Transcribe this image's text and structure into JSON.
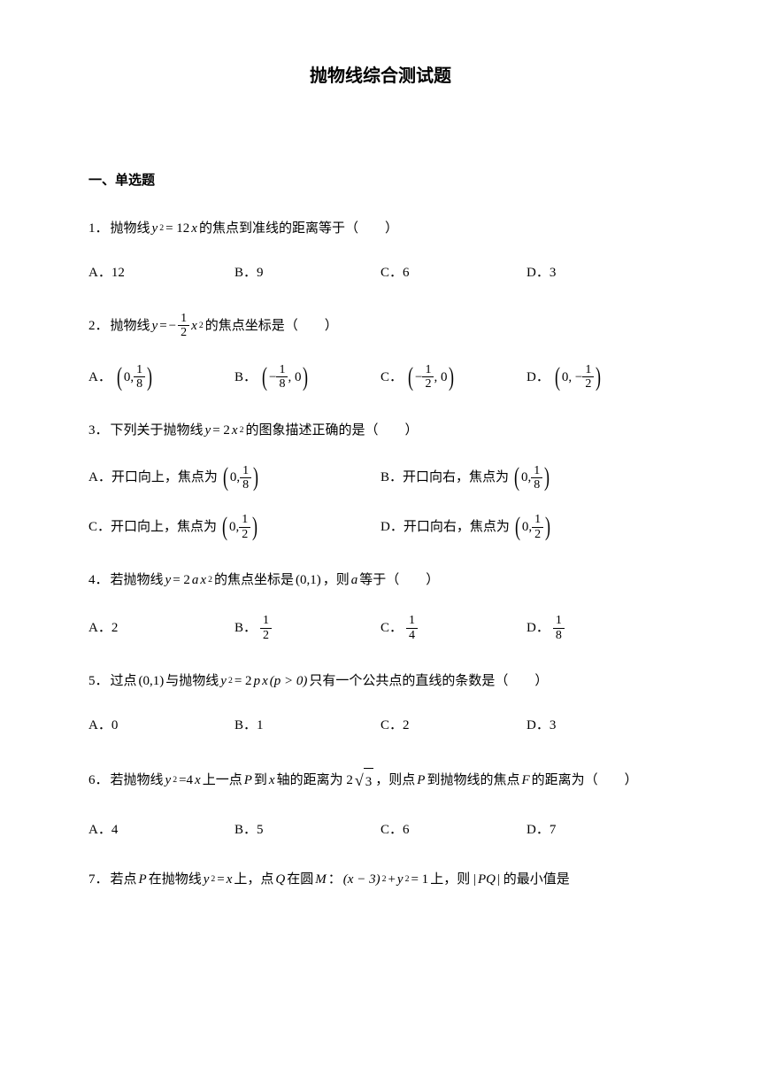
{
  "title": "抛物线综合测试题",
  "section_header": "一、单选题",
  "questions": [
    {
      "num": "1．",
      "stem_prefix": "抛物线 ",
      "eq_lhs": "y",
      "eq_sup": "2",
      "eq_eq": " = 12",
      "eq_var": "x",
      "stem_suffix": " 的焦点到准线的距离等于（　　）",
      "opts": [
        "A．12",
        "B．9",
        "C．6",
        "D．3"
      ],
      "layout": "opt-4"
    },
    {
      "num": "2．",
      "stem_prefix": "抛物线 ",
      "eq_y": "y",
      "eq_eq": " = ",
      "eq_neg": "−",
      "frac_num": "1",
      "frac_den": "2",
      "eq_x": "x",
      "eq_sup": "2",
      "stem_suffix": " 的焦点坐标是（　　）",
      "opts": {
        "A": {
          "label": "A．",
          "a": "0,",
          "n": "1",
          "d": "8"
        },
        "B": {
          "label": "B．",
          "neg": "−",
          "n": "1",
          "d": "8",
          "b": ", 0"
        },
        "C": {
          "label": "C．",
          "neg": "−",
          "n": "1",
          "d": "2",
          "b": ", 0"
        },
        "D": {
          "label": "D．",
          "a": "0, −",
          "n": "1",
          "d": "2"
        }
      },
      "layout": "opt-4"
    },
    {
      "num": "3．",
      "stem_prefix": "下列关于抛物线 ",
      "eq_y": "y",
      "eq_eq": " = 2",
      "eq_x": "x",
      "eq_sup": "2",
      "stem_suffix": " 的图象描述正确的是（　　）",
      "opts": {
        "A": {
          "label": "A．开口向上，焦点为",
          "a": "0,",
          "n": "1",
          "d": "8"
        },
        "B": {
          "label": "B．开口向右，焦点为",
          "a": "0,",
          "n": "1",
          "d": "8"
        },
        "C": {
          "label": "C．开口向上，焦点为",
          "a": "0,",
          "n": "1",
          "d": "2"
        },
        "D": {
          "label": "D．开口向右，焦点为",
          "a": "0,",
          "n": "1",
          "d": "2"
        }
      },
      "layout": "opt-2"
    },
    {
      "num": "4．",
      "stem_prefix": "若抛物线 ",
      "eq_y": "y",
      "eq_eq": " = 2",
      "eq_a": "a",
      "eq_x": "x",
      "eq_sup": "2",
      "stem_mid": " 的焦点坐标是 ",
      "coord": "(0,1)",
      "stem_mid2": "，则 ",
      "eq_a2": "a",
      "stem_suffix": " 等于（　　）",
      "opts": {
        "A": {
          "label": "A．2"
        },
        "B": {
          "label": "B．",
          "n": "1",
          "d": "2"
        },
        "C": {
          "label": "C．",
          "n": "1",
          "d": "4"
        },
        "D": {
          "label": "D．",
          "n": "1",
          "d": "8"
        }
      },
      "layout": "opt-4"
    },
    {
      "num": "5．",
      "stem_prefix": "过点 ",
      "coord": "(0,1)",
      "stem_mid": " 与抛物线 ",
      "eq_y": "y",
      "eq_sup": "2",
      "eq_eq": " = 2",
      "eq_p": "p",
      "eq_x": "x",
      "eq_cond": "(p > 0)",
      "stem_suffix": " 只有一个公共点的直线的条数是（　　）",
      "opts": [
        "A．0",
        "B．1",
        "C．2",
        "D．3"
      ],
      "layout": "opt-4"
    },
    {
      "num": "6．",
      "stem_prefix": "若抛物线 ",
      "eq_y": "y",
      "eq_sup": "2",
      "eq_eq": "=4",
      "eq_x": "x",
      "stem_mid": " 上一点 ",
      "eq_P": "P",
      "stem_mid2": " 到 ",
      "eq_x2": "x",
      "stem_mid3": " 轴的距离为 2",
      "sqrt_arg": "3",
      "stem_mid4": "，则点 ",
      "eq_P2": "P",
      "stem_mid5": " 到抛物线的焦点 ",
      "eq_F": "F",
      "stem_suffix": " 的距离为（　　）",
      "opts": [
        "A．4",
        "B．5",
        "C．6",
        "D．7"
      ],
      "layout": "opt-4"
    },
    {
      "num": "7．",
      "stem_prefix": "若点 ",
      "eq_P": "P",
      "stem_mid": " 在抛物线 ",
      "eq_y": "y",
      "eq_sup": "2",
      "eq_eq": " = ",
      "eq_x": "x",
      "stem_mid2": " 上，点 ",
      "eq_Q": "Q",
      "stem_mid3": " 在圆 ",
      "eq_M": "M",
      "stem_mid4": "：",
      "circ_lhs": "(x − 3)",
      "circ_sup": "2",
      "circ_mid": " + ",
      "circ_y": "y",
      "circ_sup2": "2",
      "circ_eq": " = 1",
      "stem_mid5": " 上，则 |",
      "eq_PQ": "PQ",
      "stem_suffix": "| 的最小值是"
    }
  ]
}
